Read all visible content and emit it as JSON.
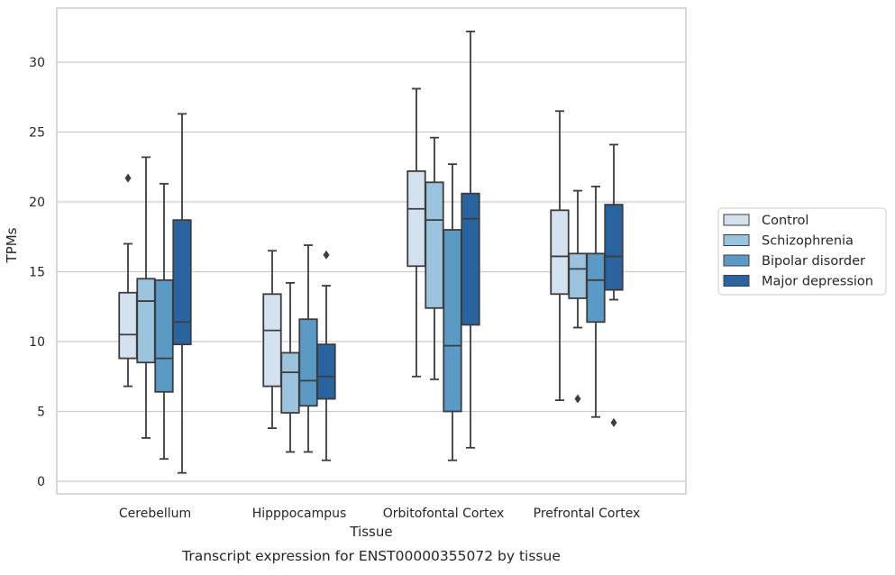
{
  "chart_data": {
    "type": "boxplot",
    "title": "Transcript expression for ENST00000355072 by tissue",
    "xlabel": "Tissue",
    "ylabel": "TPMs",
    "ylim": [
      -0.9,
      33.5
    ],
    "yticks": [
      0,
      5,
      10,
      15,
      20,
      25,
      30
    ],
    "grid": "horizontal",
    "legend_position": "right",
    "categories": [
      "Cerebellum",
      "Hipppocampus",
      "Orbitofontal Cortex",
      "Prefrontal Cortex"
    ],
    "series": [
      {
        "name": "Control",
        "color": "#d4e2f0",
        "boxes": [
          {
            "whislo": 6.8,
            "q1": 8.8,
            "med": 10.5,
            "q3": 13.5,
            "whishi": 17.0,
            "fliers": [
              21.7
            ]
          },
          {
            "whislo": 3.8,
            "q1": 6.8,
            "med": 10.8,
            "q3": 13.4,
            "whishi": 16.5,
            "fliers": []
          },
          {
            "whislo": 7.5,
            "q1": 15.4,
            "med": 19.5,
            "q3": 22.2,
            "whishi": 28.1,
            "fliers": []
          },
          {
            "whislo": 5.8,
            "q1": 13.4,
            "med": 16.1,
            "q3": 19.4,
            "whishi": 26.5,
            "fliers": []
          }
        ]
      },
      {
        "name": "Schizophrenia",
        "color": "#9cc3de",
        "boxes": [
          {
            "whislo": 3.1,
            "q1": 8.5,
            "med": 12.9,
            "q3": 14.5,
            "whishi": 23.2,
            "fliers": []
          },
          {
            "whislo": 2.1,
            "q1": 4.9,
            "med": 7.8,
            "q3": 9.2,
            "whishi": 14.2,
            "fliers": []
          },
          {
            "whislo": 7.3,
            "q1": 12.4,
            "med": 18.7,
            "q3": 21.4,
            "whishi": 24.6,
            "fliers": []
          },
          {
            "whislo": 11.0,
            "q1": 13.1,
            "med": 15.2,
            "q3": 16.3,
            "whishi": 20.8,
            "fliers": [
              5.9
            ]
          }
        ]
      },
      {
        "name": "Bipolar disorder",
        "color": "#5b9ac6",
        "boxes": [
          {
            "whislo": 1.6,
            "q1": 6.4,
            "med": 8.8,
            "q3": 14.4,
            "whishi": 21.3,
            "fliers": []
          },
          {
            "whislo": 2.1,
            "q1": 5.4,
            "med": 7.2,
            "q3": 11.6,
            "whishi": 16.9,
            "fliers": []
          },
          {
            "whislo": 1.5,
            "q1": 5.0,
            "med": 9.7,
            "q3": 18.0,
            "whishi": 22.7,
            "fliers": []
          },
          {
            "whislo": 4.6,
            "q1": 11.4,
            "med": 14.4,
            "q3": 16.3,
            "whishi": 21.1,
            "fliers": []
          }
        ]
      },
      {
        "name": "Major depression",
        "color": "#2a64a0",
        "boxes": [
          {
            "whislo": 0.6,
            "q1": 9.8,
            "med": 11.4,
            "q3": 18.7,
            "whishi": 26.3,
            "fliers": []
          },
          {
            "whislo": 1.5,
            "q1": 5.9,
            "med": 7.5,
            "q3": 9.8,
            "whishi": 14.0,
            "fliers": [
              16.2
            ]
          },
          {
            "whislo": 2.4,
            "q1": 11.2,
            "med": 18.8,
            "q3": 20.6,
            "whishi": 32.2,
            "fliers": []
          },
          {
            "whislo": 13.0,
            "q1": 13.7,
            "med": 16.1,
            "q3": 19.8,
            "whishi": 24.1,
            "fliers": [
              4.2
            ]
          }
        ]
      }
    ]
  }
}
